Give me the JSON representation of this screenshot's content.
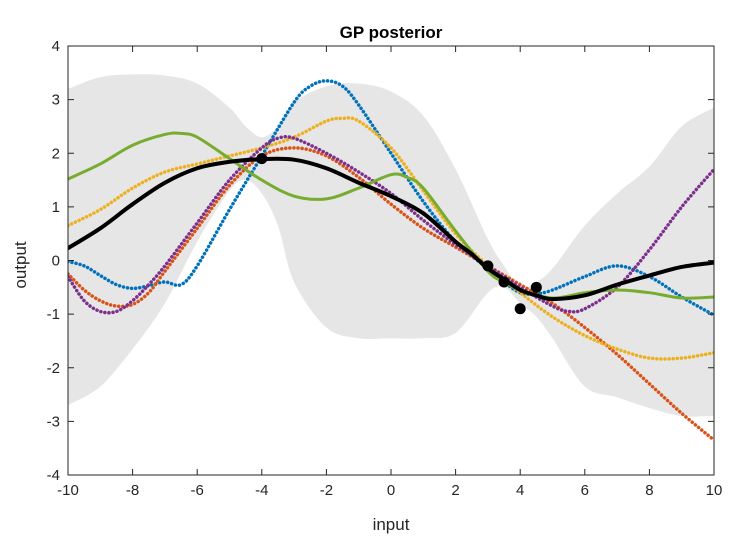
{
  "chart_data": {
    "type": "line",
    "title": "GP posterior",
    "xlabel": "input",
    "ylabel": "output",
    "xlim": [
      -10,
      10
    ],
    "ylim": [
      -4,
      4
    ],
    "xticks": [
      "-10",
      "-8",
      "-6",
      "-4",
      "-2",
      "0",
      "2",
      "4",
      "6",
      "8",
      "10"
    ],
    "yticks": [
      "4",
      "3",
      "2",
      "1",
      "0",
      "-1",
      "-2",
      "-3",
      "-4"
    ],
    "grid": false,
    "band_color": "#e6e6e6",
    "band": {
      "x": [
        -10,
        -9,
        -8,
        -7,
        -6,
        -5,
        -4.5,
        -4,
        -3.5,
        -3,
        -2,
        -1,
        0,
        1,
        2,
        3,
        3.5,
        4,
        4.5,
        5,
        6,
        7,
        8,
        9,
        10
      ],
      "upper": [
        3.2,
        3.42,
        3.47,
        3.45,
        3.3,
        2.85,
        2.5,
        2.3,
        2.5,
        2.95,
        3.25,
        3.3,
        3.15,
        2.7,
        1.7,
        0.4,
        -0.1,
        -0.5,
        -0.4,
        -0.15,
        0.65,
        1.25,
        1.75,
        2.5,
        2.85
      ],
      "lower": [
        -2.7,
        -2.35,
        -1.65,
        -0.8,
        0.35,
        1.3,
        1.5,
        1.25,
        0.65,
        -0.4,
        -1.25,
        -1.45,
        -1.45,
        -1.45,
        -1.35,
        -0.6,
        -0.5,
        -0.8,
        -1.05,
        -1.45,
        -2.35,
        -2.55,
        -2.75,
        -2.9,
        -2.9
      ]
    },
    "series": [
      {
        "color": "#000000",
        "style": "solid",
        "width": 4,
        "x": [
          -10,
          -9,
          -8,
          -7,
          -6,
          -5,
          -4,
          -3,
          -2,
          -1,
          0,
          1,
          2,
          2.5,
          3,
          3.5,
          4,
          4.5,
          5,
          6,
          7,
          8,
          9,
          10
        ],
        "y": [
          0.23,
          0.6,
          1.05,
          1.45,
          1.72,
          1.84,
          1.89,
          1.88,
          1.72,
          1.45,
          1.2,
          0.88,
          0.35,
          0.12,
          -0.15,
          -0.35,
          -0.55,
          -0.65,
          -0.72,
          -0.65,
          -0.45,
          -0.28,
          -0.12,
          -0.04
        ]
      },
      {
        "color": "#0072bd",
        "style": "dotted",
        "width": 3.5,
        "x": [
          -10,
          -9.5,
          -9,
          -8.5,
          -8,
          -7.5,
          -7,
          -6.5,
          -6,
          -5,
          -4,
          -3,
          -2.5,
          -2,
          -1.5,
          -1,
          0,
          1,
          2,
          3,
          3.5,
          4,
          4.5,
          5,
          6,
          7,
          8,
          9,
          10
        ],
        "y": [
          -0.02,
          -0.1,
          -0.28,
          -0.45,
          -0.52,
          -0.47,
          -0.4,
          -0.45,
          -0.1,
          0.95,
          1.95,
          2.95,
          3.25,
          3.35,
          3.25,
          2.9,
          2.0,
          1.1,
          0.35,
          -0.15,
          -0.4,
          -0.6,
          -0.62,
          -0.55,
          -0.3,
          -0.1,
          -0.3,
          -0.68,
          -1.02
        ]
      },
      {
        "color": "#d95319",
        "style": "dotted",
        "width": 3.5,
        "x": [
          -10,
          -9.5,
          -9,
          -8.5,
          -8,
          -7.5,
          -7,
          -6,
          -5,
          -4,
          -3,
          -2,
          -1,
          0,
          1,
          2,
          3,
          4,
          5,
          6,
          7,
          8,
          9,
          10
        ],
        "y": [
          -0.25,
          -0.55,
          -0.75,
          -0.85,
          -0.82,
          -0.6,
          -0.2,
          0.6,
          1.4,
          1.95,
          2.1,
          1.95,
          1.55,
          1.05,
          0.6,
          0.25,
          -0.1,
          -0.45,
          -0.8,
          -1.25,
          -1.75,
          -2.3,
          -2.85,
          -3.35
        ]
      },
      {
        "color": "#edb120",
        "style": "dotted",
        "width": 3.5,
        "x": [
          -10,
          -9,
          -8,
          -7,
          -6,
          -5,
          -4,
          -3,
          -2,
          -1.5,
          -1,
          0,
          1,
          2,
          3,
          4,
          5,
          6,
          7,
          8,
          9,
          10
        ],
        "y": [
          0.65,
          0.95,
          1.35,
          1.65,
          1.8,
          1.95,
          2.1,
          2.3,
          2.6,
          2.65,
          2.6,
          2.1,
          1.3,
          0.5,
          -0.1,
          -0.6,
          -1.05,
          -1.4,
          -1.65,
          -1.82,
          -1.82,
          -1.72
        ]
      },
      {
        "color": "#7e2f8e",
        "style": "dotted",
        "width": 3.5,
        "x": [
          -10,
          -9.5,
          -9,
          -8.5,
          -8,
          -7.5,
          -7,
          -6,
          -5,
          -4,
          -3.5,
          -3,
          -2,
          -1,
          0,
          1,
          2,
          3,
          4,
          5,
          5.5,
          6,
          7,
          8,
          9,
          10
        ],
        "y": [
          -0.3,
          -0.75,
          -0.95,
          -0.95,
          -0.75,
          -0.45,
          -0.1,
          0.7,
          1.5,
          2.1,
          2.28,
          2.28,
          2.0,
          1.65,
          1.25,
          0.75,
          0.3,
          -0.1,
          -0.5,
          -0.85,
          -0.95,
          -0.9,
          -0.5,
          0.2,
          1.0,
          1.7
        ]
      },
      {
        "color": "#77ac30",
        "style": "solid",
        "width": 3,
        "x": [
          -10,
          -9,
          -8,
          -7,
          -6.5,
          -6,
          -5,
          -4,
          -3,
          -2,
          -1,
          0,
          0.5,
          1,
          2,
          3,
          3.5,
          4,
          5,
          6,
          7,
          8,
          9,
          10
        ],
        "y": [
          1.52,
          1.8,
          2.15,
          2.35,
          2.37,
          2.3,
          1.9,
          1.5,
          1.2,
          1.15,
          1.35,
          1.6,
          1.55,
          1.35,
          0.55,
          -0.2,
          -0.4,
          -0.55,
          -0.7,
          -0.6,
          -0.55,
          -0.6,
          -0.7,
          -0.68
        ]
      }
    ],
    "points": {
      "color": "#000000",
      "x": [
        -4,
        3,
        3.5,
        4,
        4.5
      ],
      "y": [
        1.9,
        -0.1,
        -0.4,
        -0.9,
        -0.5
      ]
    }
  }
}
